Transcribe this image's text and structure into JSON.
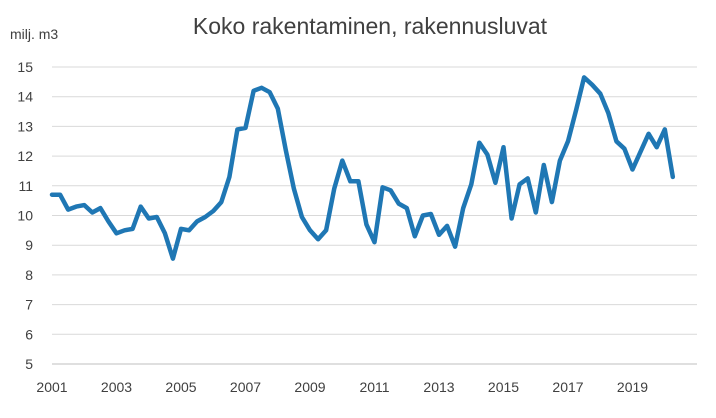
{
  "chart_data": {
    "type": "line",
    "title": "Koko rakentaminen, rakennusluvat",
    "ylabel": "milj. m3",
    "xlabel": "",
    "ylim": [
      5,
      15
    ],
    "yticks": [
      "5",
      "6",
      "7",
      "8",
      "9",
      "10",
      "11",
      "12",
      "13",
      "14",
      "15"
    ],
    "xticks": [
      "2001",
      "2003",
      "2005",
      "2007",
      "2009",
      "2011",
      "2013",
      "2015",
      "2017",
      "2019"
    ],
    "xlim": [
      2001,
      2021
    ],
    "grid": "horizontal",
    "line_color": "#1f77b4",
    "series": [
      {
        "x": [
          2001.0,
          2001.25,
          2001.5,
          2001.75,
          2002.0,
          2002.25,
          2002.5,
          2002.75,
          2003.0,
          2003.25,
          2003.5,
          2003.75,
          2004.0,
          2004.25,
          2004.5,
          2004.75,
          2005.0,
          2005.25,
          2005.5,
          2005.75,
          2006.0,
          2006.25,
          2006.5,
          2006.75,
          2007.0,
          2007.25,
          2007.5,
          2007.75,
          2008.0,
          2008.25,
          2008.5,
          2008.75,
          2009.0,
          2009.25,
          2009.5,
          2009.75,
          2010.0,
          2010.25,
          2010.5,
          2010.75,
          2011.0,
          2011.25,
          2011.5,
          2011.75,
          2012.0,
          2012.25,
          2012.5,
          2012.75,
          2013.0,
          2013.25,
          2013.5,
          2013.75,
          2014.0,
          2014.25,
          2014.5,
          2014.75,
          2015.0,
          2015.25,
          2015.5,
          2015.75,
          2016.0,
          2016.25,
          2016.5,
          2016.75,
          2017.0,
          2017.25,
          2017.5,
          2017.75,
          2018.0,
          2018.25,
          2018.5,
          2018.75,
          2019.0,
          2019.25,
          2019.5,
          2019.75,
          2020.0,
          2020.25
        ],
        "values": [
          10.7,
          10.7,
          10.2,
          10.3,
          10.35,
          10.1,
          10.25,
          9.8,
          9.4,
          9.5,
          9.55,
          10.3,
          9.9,
          9.95,
          9.4,
          8.55,
          9.55,
          9.5,
          9.8,
          9.95,
          10.15,
          10.45,
          11.3,
          12.9,
          12.95,
          14.2,
          14.3,
          14.15,
          13.6,
          12.2,
          10.9,
          9.95,
          9.5,
          9.2,
          9.5,
          10.9,
          11.85,
          11.15,
          11.15,
          9.7,
          9.1,
          10.95,
          10.85,
          10.4,
          10.25,
          9.3,
          10.0,
          10.05,
          9.35,
          9.65,
          8.95,
          10.25,
          11.05,
          12.45,
          12.05,
          11.1,
          12.3,
          9.9,
          11.05,
          11.25,
          10.1,
          11.7,
          10.45,
          11.85,
          12.5,
          13.55,
          14.65,
          14.4,
          14.1,
          13.45,
          12.5,
          12.25,
          11.55,
          12.15,
          12.75,
          12.3,
          12.9,
          11.3
        ]
      }
    ]
  }
}
